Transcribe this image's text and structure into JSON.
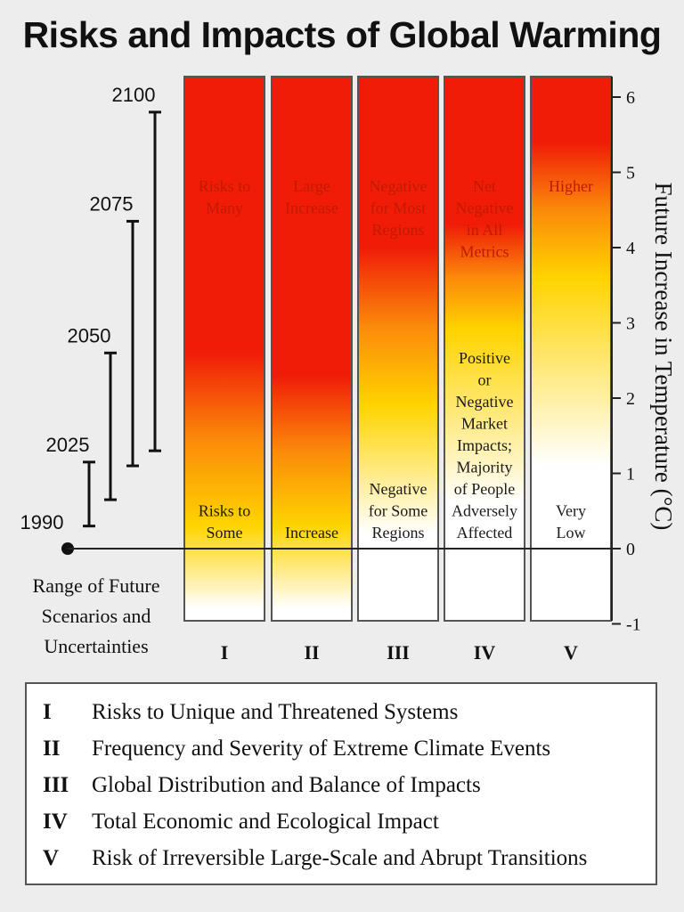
{
  "title": "Risks and Impacts of Global Warming",
  "chart_data": {
    "type": "bar",
    "title": "Risks and Impacts of Global Warming",
    "ylabel": "Future Increase in Temperature (°C)",
    "ylim": [
      -1,
      6.2
    ],
    "yticks": [
      6,
      5,
      4,
      3,
      2,
      1,
      0,
      -1
    ],
    "categories": [
      "I",
      "II",
      "III",
      "IV",
      "V"
    ],
    "columns": [
      {
        "code": "I",
        "high_label": [
          "Risks to",
          "Many"
        ],
        "low_label": [
          "Risks to",
          "Some"
        ],
        "gradient": {
          "red_above": 2.6,
          "yellow_at": 0.3,
          "white_at": -0.8
        }
      },
      {
        "code": "II",
        "high_label": [
          "Large",
          "Increase"
        ],
        "low_label": [
          "Increase"
        ],
        "gradient": {
          "red_above": 2.3,
          "yellow_at": 0.3,
          "white_at": -0.8
        }
      },
      {
        "code": "III",
        "high_label": [
          "Negative",
          "for Most",
          "Regions"
        ],
        "low_label": [
          "Negative",
          "for Some",
          "Regions"
        ],
        "gradient": {
          "red_above": 4.0,
          "yellow_at": 1.9,
          "white_at": 0.2
        }
      },
      {
        "code": "IV",
        "high_label": [
          "Net",
          "Negative",
          "in All",
          "Metrics"
        ],
        "low_label": [
          "Positive",
          "or",
          "Negative",
          "Market",
          "Impacts;",
          "Majority",
          "of People",
          "Adversely",
          "Affected"
        ],
        "gradient": {
          "red_above": 4.3,
          "yellow_at": 2.9,
          "white_at": 0.6
        }
      },
      {
        "code": "V",
        "high_label": [
          "Higher"
        ],
        "low_label": [
          "Very",
          "Low"
        ],
        "gradient": {
          "red_above": 5.4,
          "yellow_at": 3.6,
          "white_at": 1.1
        }
      }
    ],
    "scenario_ranges": [
      {
        "year": "1990",
        "min": 0,
        "max": 0
      },
      {
        "year": "2025",
        "min": 0.3,
        "max": 1.15
      },
      {
        "year": "2050",
        "min": 0.65,
        "max": 2.6
      },
      {
        "year": "2075",
        "min": 1.1,
        "max": 4.35
      },
      {
        "year": "2100",
        "min": 1.3,
        "max": 5.8
      }
    ],
    "range_caption": [
      "Range of Future",
      "Scenarios and",
      "Uncertainties"
    ]
  },
  "legend": [
    {
      "code": "I",
      "text": "Risks to Unique and Threatened Systems"
    },
    {
      "code": "II",
      "text": "Frequency and Severity of Extreme Climate Events"
    },
    {
      "code": "III",
      "text": "Global Distribution and Balance of Impacts"
    },
    {
      "code": "IV",
      "text": "Total Economic and Ecological Impact"
    },
    {
      "code": "V",
      "text": "Risk of Irreversible Large-Scale and Abrupt Transitions"
    }
  ],
  "colors": {
    "red": "#f01c08",
    "orange": "#fb8a0a",
    "yellow": "#ffd400",
    "white": "#ffffff",
    "frame": "#555555"
  }
}
